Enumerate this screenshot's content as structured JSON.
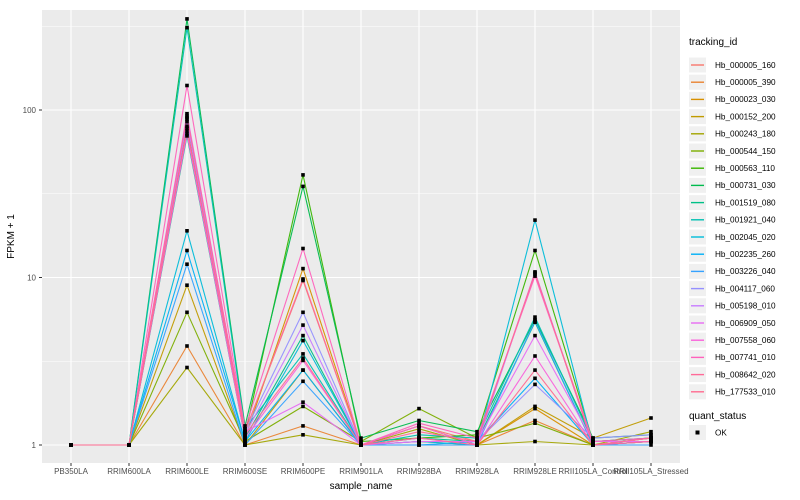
{
  "chart_data": {
    "type": "line",
    "title": "",
    "xlabel": "sample_name",
    "ylabel": "FPKM + 1",
    "y_scale": "log10",
    "y_major_ticks": [
      1,
      10,
      100
    ],
    "y_minor_ticks": [
      3.162,
      31.623,
      316.228
    ],
    "ylim": [
      0.85,
      400
    ],
    "grid": true,
    "panel_bg": "#EBEBEB",
    "grid_color": "#FFFFFF",
    "axis_text_color": "#4D4D4D",
    "tick_color": "#333333",
    "legend_key_bg": "#F0F0F0",
    "point_color": "#000000",
    "point_shape": "square",
    "categories": [
      "PB350LA",
      "RRIM600LA",
      "RRIM600LE",
      "RRIM600SE",
      "RRIM600PE",
      "RRIM901LA",
      "RRIM928BA",
      "RRIM928LA",
      "RRIM928LE",
      "RRII105LA_Control",
      "RRII105LA_Stressed"
    ],
    "series": [
      {
        "name": "Hb_000005_160",
        "color": "#F8766D",
        "values": [
          1,
          1,
          75,
          1.2,
          9.6,
          1,
          1.3,
          1.05,
          10.5,
          1.05,
          1.1
        ]
      },
      {
        "name": "Hb_000005_390",
        "color": "#EA8331",
        "values": [
          1,
          1,
          3.9,
          1,
          1.3,
          1,
          1,
          1,
          1.4,
          1,
          1.05
        ]
      },
      {
        "name": "Hb_000023_030",
        "color": "#D89000",
        "values": [
          1,
          1,
          88,
          1.1,
          11.3,
          1,
          1.05,
          1,
          1.65,
          1,
          1.1
        ]
      },
      {
        "name": "Hb_000152_200",
        "color": "#C09B00",
        "values": [
          1,
          1,
          9,
          1,
          2.8,
          1,
          1.3,
          1,
          1.7,
          1.1,
          1.45
        ]
      },
      {
        "name": "Hb_000243_180",
        "color": "#A3A500",
        "values": [
          1,
          1,
          2.9,
          1,
          1.15,
          1,
          1.25,
          1,
          1.05,
          1,
          1.2
        ]
      },
      {
        "name": "Hb_000544_150",
        "color": "#7CAE00",
        "values": [
          1,
          1,
          6.2,
          1.05,
          1.7,
          1.05,
          1.65,
          1.1,
          1.35,
          1,
          1.1
        ]
      },
      {
        "name": "Hb_000563_110",
        "color": "#39B600",
        "values": [
          1,
          1,
          80,
          1.15,
          41,
          1.05,
          1.1,
          1.15,
          14.5,
          1.05,
          1.1
        ]
      },
      {
        "name": "Hb_000731_030",
        "color": "#00BB4E",
        "values": [
          1,
          1,
          350,
          1.3,
          35,
          1.1,
          1.4,
          1.2,
          5.6,
          1.1,
          1.15
        ]
      },
      {
        "name": "Hb_001519_080",
        "color": "#00C087",
        "values": [
          1,
          1,
          70,
          1.1,
          4.5,
          1,
          1.1,
          1.05,
          5.4,
          1,
          1.05
        ]
      },
      {
        "name": "Hb_001921_040",
        "color": "#00C0B2",
        "values": [
          1,
          1,
          310,
          1.25,
          3.5,
          1,
          1.15,
          1.1,
          5.8,
          1.05,
          1.1
        ]
      },
      {
        "name": "Hb_002045_020",
        "color": "#00BCD8",
        "values": [
          1,
          1,
          19,
          1.05,
          4.2,
          1,
          1.05,
          1,
          22,
          1,
          1.05
        ]
      },
      {
        "name": "Hb_002235_260",
        "color": "#00B0F6",
        "values": [
          1,
          1,
          14.5,
          1.05,
          2.8,
          1,
          1,
          1.05,
          2.5,
          1,
          1.05
        ]
      },
      {
        "name": "Hb_003226_040",
        "color": "#35A2FF",
        "values": [
          1,
          1,
          12,
          1,
          2.4,
          1,
          1,
          1,
          5.5,
          1,
          1
        ]
      },
      {
        "name": "Hb_004117_060",
        "color": "#9590FF",
        "values": [
          1,
          1,
          90,
          1.2,
          6.2,
          1,
          1.05,
          1.05,
          2.3,
          1.1,
          1.15
        ]
      },
      {
        "name": "Hb_005198_010",
        "color": "#C77CFF",
        "values": [
          1,
          1,
          85,
          1.15,
          5.2,
          1,
          1.1,
          1,
          10.8,
          1,
          1.1
        ]
      },
      {
        "name": "Hb_006909_050",
        "color": "#E76BF3",
        "values": [
          1,
          1,
          95,
          1.2,
          1.8,
          1,
          1.05,
          1.05,
          4.5,
          1.05,
          1.05
        ]
      },
      {
        "name": "Hb_007558_060",
        "color": "#FA62DB",
        "values": [
          1,
          1,
          72,
          1.1,
          3.2,
          1,
          1.3,
          1,
          3.4,
          1,
          1.05
        ]
      },
      {
        "name": "Hb_007741_010",
        "color": "#FF62BC",
        "values": [
          1,
          1,
          140,
          1.25,
          14.9,
          1,
          1.35,
          1.1,
          10.2,
          1.05,
          1.1
        ]
      },
      {
        "name": "Hb_008642_020",
        "color": "#FF6A98",
        "values": [
          1,
          1,
          92,
          1.2,
          9.8,
          1,
          1.2,
          1.05,
          10.7,
          1,
          1.1
        ]
      },
      {
        "name": "Hb_177533_010",
        "color": "#FF6C91",
        "values": [
          1,
          1,
          78,
          1.15,
          3.3,
          1,
          1.1,
          1,
          2.8,
          1,
          1.05
        ]
      }
    ],
    "legends": [
      {
        "title": "tracking_id",
        "type": "line-keys"
      },
      {
        "title": "quant_status",
        "items": [
          {
            "label": "OK",
            "symbol": "square",
            "color": "#000000"
          }
        ]
      }
    ]
  }
}
